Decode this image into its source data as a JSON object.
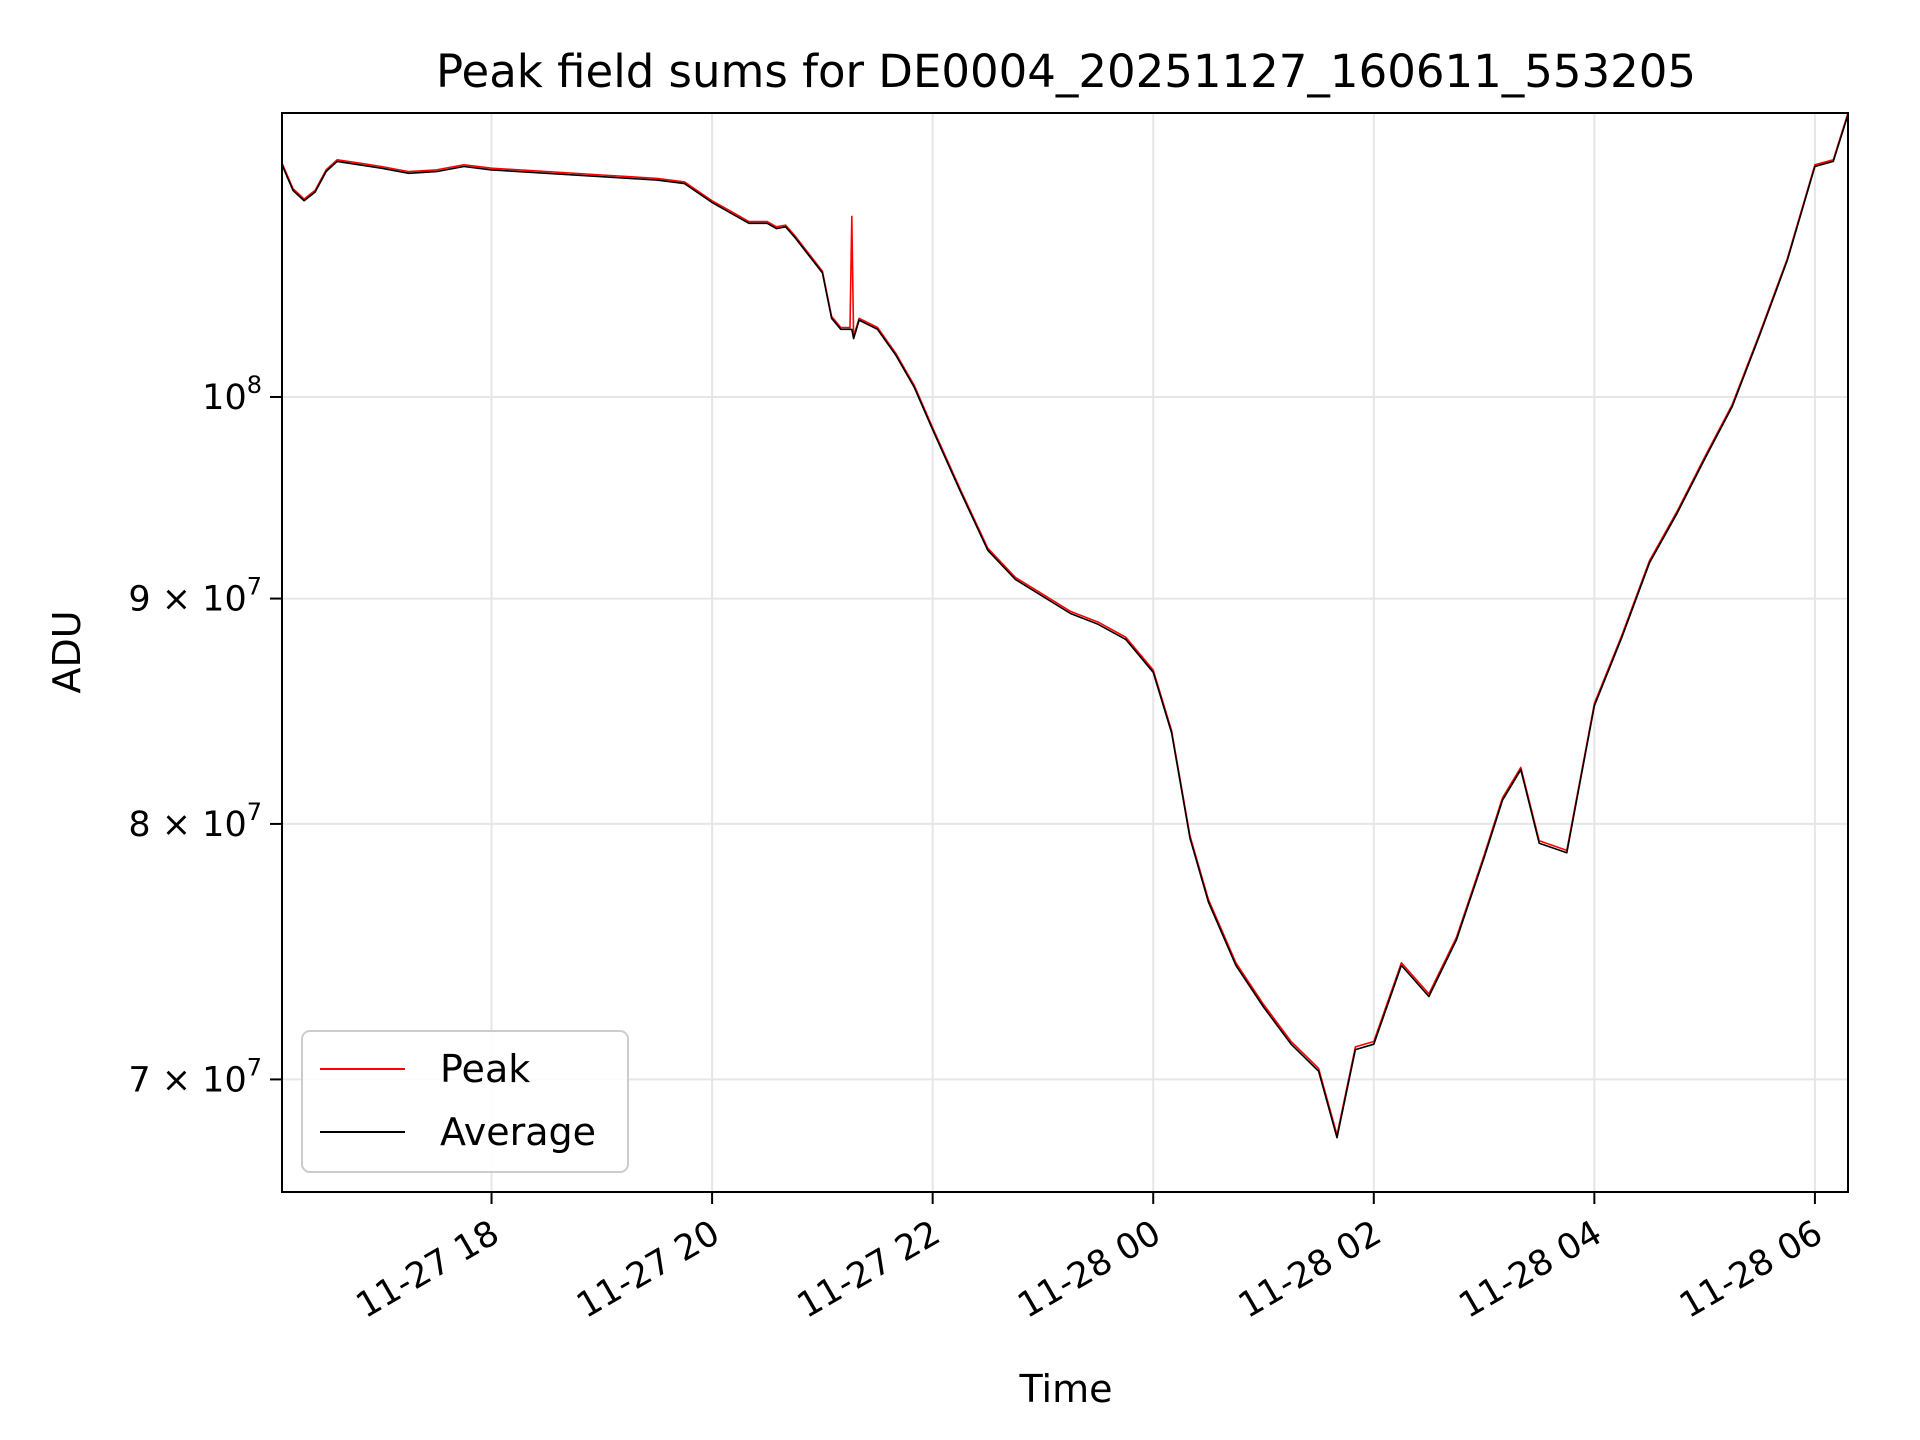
{
  "chart_data": {
    "type": "line",
    "title": "Peak field sums for DE0004_20251127_160611_553205",
    "xlabel": "Time",
    "ylabel": "ADU",
    "y_scale": "log",
    "grid": true,
    "legend_position": "lower-left",
    "xlim": [
      "2025-11-27 16:06",
      "2025-11-28 06:18"
    ],
    "ylim": [
      66000000,
      116000000
    ],
    "x_ticks": [
      {
        "value": "2025-11-27 18:00",
        "label": "11-27 18"
      },
      {
        "value": "2025-11-27 20:00",
        "label": "11-27 20"
      },
      {
        "value": "2025-11-27 22:00",
        "label": "11-27 22"
      },
      {
        "value": "2025-11-28 00:00",
        "label": "11-28 00"
      },
      {
        "value": "2025-11-28 02:00",
        "label": "11-28 02"
      },
      {
        "value": "2025-11-28 04:00",
        "label": "11-28 04"
      },
      {
        "value": "2025-11-28 06:00",
        "label": "11-28 06"
      }
    ],
    "y_ticks": [
      {
        "value": 70000000,
        "base": "7 × 10",
        "exp": "7"
      },
      {
        "value": 80000000,
        "base": "8 × 10",
        "exp": "7"
      },
      {
        "value": 90000000,
        "base": "9 × 10",
        "exp": "7"
      },
      {
        "value": 100000000,
        "base": "10",
        "exp": "8"
      }
    ],
    "series": [
      {
        "name": "Peak",
        "color": "#ff0000",
        "x": [
          "2025-11-27 16:06",
          "2025-11-27 16:12",
          "2025-11-27 16:18",
          "2025-11-27 16:24",
          "2025-11-27 16:30",
          "2025-11-27 16:36",
          "2025-11-27 16:48",
          "2025-11-27 17:00",
          "2025-11-27 17:15",
          "2025-11-27 17:30",
          "2025-11-27 17:45",
          "2025-11-27 18:00",
          "2025-11-27 18:30",
          "2025-11-27 19:00",
          "2025-11-27 19:30",
          "2025-11-27 19:45",
          "2025-11-27 20:00",
          "2025-11-27 20:10",
          "2025-11-27 20:20",
          "2025-11-27 20:30",
          "2025-11-27 20:35",
          "2025-11-27 20:40",
          "2025-11-27 20:45",
          "2025-11-27 21:00",
          "2025-11-27 21:05",
          "2025-11-27 21:10",
          "2025-11-27 21:15",
          "2025-11-27 21:16",
          "2025-11-27 21:17",
          "2025-11-27 21:20",
          "2025-11-27 21:30",
          "2025-11-27 21:40",
          "2025-11-27 21:50",
          "2025-11-27 22:00",
          "2025-11-27 22:15",
          "2025-11-27 22:30",
          "2025-11-27 22:45",
          "2025-11-27 23:00",
          "2025-11-27 23:15",
          "2025-11-27 23:30",
          "2025-11-27 23:45",
          "2025-11-28 00:00",
          "2025-11-28 00:10",
          "2025-11-28 00:20",
          "2025-11-28 00:30",
          "2025-11-28 00:45",
          "2025-11-28 01:00",
          "2025-11-28 01:15",
          "2025-11-28 01:30",
          "2025-11-28 01:40",
          "2025-11-28 01:50",
          "2025-11-28 02:00",
          "2025-11-28 02:15",
          "2025-11-28 02:30",
          "2025-11-28 02:45",
          "2025-11-28 03:00",
          "2025-11-28 03:10",
          "2025-11-28 03:20",
          "2025-11-28 03:30",
          "2025-11-28 03:45",
          "2025-11-28 04:00",
          "2025-11-28 04:15",
          "2025-11-28 04:30",
          "2025-11-28 04:45",
          "2025-11-28 05:00",
          "2025-11-28 05:15",
          "2025-11-28 05:30",
          "2025-11-28 05:45",
          "2025-11-28 06:00",
          "2025-11-28 06:10",
          "2025-11-28 06:18"
        ],
        "y": [
          113000000,
          111500000,
          110900000,
          111400000,
          112600000,
          113200000,
          113000000,
          112800000,
          112500000,
          112600000,
          112900000,
          112700000,
          112500000,
          112300000,
          112100000,
          111900000,
          110800000,
          110200000,
          109600000,
          109600000,
          109300000,
          109400000,
          108800000,
          106800000,
          104300000,
          103700000,
          103700000,
          109900000,
          103200000,
          104200000,
          103700000,
          102300000,
          100600000,
          98400000,
          95300000,
          92400000,
          91000000,
          90200000,
          89400000,
          88900000,
          88200000,
          86700000,
          84000000,
          79500000,
          76900000,
          74400000,
          72800000,
          71400000,
          70400000,
          68000000,
          71200000,
          71400000,
          74400000,
          73200000,
          75400000,
          78700000,
          81100000,
          82400000,
          79300000,
          78900000,
          85200000,
          88300000,
          91800000,
          94200000,
          96900000,
          99600000,
          103400000,
          107500000,
          112900000,
          113200000,
          116000000
        ]
      },
      {
        "name": "Average",
        "color": "#000000",
        "x": [
          "2025-11-27 16:06",
          "2025-11-27 16:12",
          "2025-11-27 16:18",
          "2025-11-27 16:24",
          "2025-11-27 16:30",
          "2025-11-27 16:36",
          "2025-11-27 16:48",
          "2025-11-27 17:00",
          "2025-11-27 17:15",
          "2025-11-27 17:30",
          "2025-11-27 17:45",
          "2025-11-27 18:00",
          "2025-11-27 18:30",
          "2025-11-27 19:00",
          "2025-11-27 19:30",
          "2025-11-27 19:45",
          "2025-11-27 20:00",
          "2025-11-27 20:10",
          "2025-11-27 20:20",
          "2025-11-27 20:30",
          "2025-11-27 20:35",
          "2025-11-27 20:40",
          "2025-11-27 20:45",
          "2025-11-27 21:00",
          "2025-11-27 21:05",
          "2025-11-27 21:10",
          "2025-11-27 21:15",
          "2025-11-27 21:16",
          "2025-11-27 21:17",
          "2025-11-27 21:20",
          "2025-11-27 21:30",
          "2025-11-27 21:40",
          "2025-11-27 21:50",
          "2025-11-27 22:00",
          "2025-11-27 22:15",
          "2025-11-27 22:30",
          "2025-11-27 22:45",
          "2025-11-27 23:00",
          "2025-11-27 23:15",
          "2025-11-27 23:30",
          "2025-11-27 23:45",
          "2025-11-28 00:00",
          "2025-11-28 00:10",
          "2025-11-28 00:20",
          "2025-11-28 00:30",
          "2025-11-28 00:45",
          "2025-11-28 01:00",
          "2025-11-28 01:15",
          "2025-11-28 01:30",
          "2025-11-28 01:40",
          "2025-11-28 01:50",
          "2025-11-28 02:00",
          "2025-11-28 02:15",
          "2025-11-28 02:30",
          "2025-11-28 02:45",
          "2025-11-28 03:00",
          "2025-11-28 03:10",
          "2025-11-28 03:20",
          "2025-11-28 03:30",
          "2025-11-28 03:45",
          "2025-11-28 04:00",
          "2025-11-28 04:15",
          "2025-11-28 04:30",
          "2025-11-28 04:45",
          "2025-11-28 05:00",
          "2025-11-28 05:15",
          "2025-11-28 05:30",
          "2025-11-28 05:45",
          "2025-11-28 06:00",
          "2025-11-28 06:10",
          "2025-11-28 06:18"
        ],
        "y": [
          112900000,
          111400000,
          110800000,
          111300000,
          112500000,
          113100000,
          112900000,
          112700000,
          112400000,
          112500000,
          112800000,
          112600000,
          112400000,
          112200000,
          112000000,
          111800000,
          110700000,
          110100000,
          109500000,
          109500000,
          109200000,
          109300000,
          108700000,
          106700000,
          104200000,
          103600000,
          103600000,
          103600000,
          103100000,
          104100000,
          103600000,
          102200000,
          100500000,
          98300000,
          95200000,
          92300000,
          90900000,
          90100000,
          89300000,
          88800000,
          88100000,
          86600000,
          83900000,
          79400000,
          76800000,
          74300000,
          72700000,
          71300000,
          70300000,
          67900000,
          71100000,
          71300000,
          74300000,
          73100000,
          75300000,
          78600000,
          81000000,
          82300000,
          79200000,
          78800000,
          85100000,
          88200000,
          91700000,
          94100000,
          96800000,
          99500000,
          103300000,
          107400000,
          112800000,
          113100000,
          115900000
        ]
      }
    ]
  }
}
